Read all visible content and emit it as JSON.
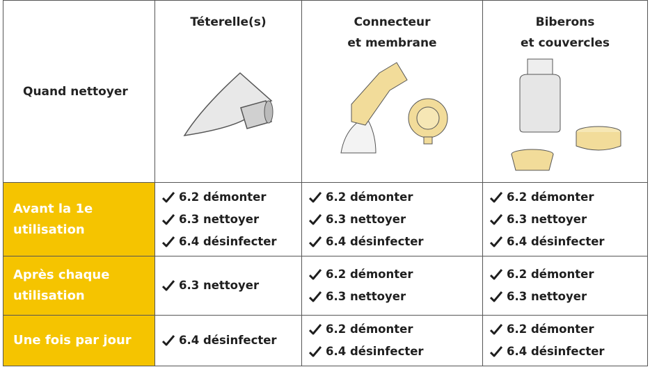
{
  "table": {
    "header": {
      "corner": "Quand nettoyer",
      "columns": [
        [
          "Téterelle(s)"
        ],
        [
          "Connecteur",
          "et membrane"
        ],
        [
          "Biberons",
          "et couvercles"
        ]
      ]
    },
    "rows": [
      {
        "label": [
          "Avant la 1e",
          "utilisation"
        ],
        "cells": [
          [
            "6.2 démonter",
            "6.3 nettoyer",
            "6.4 désinfecter"
          ],
          [
            "6.2 démonter",
            "6.3 nettoyer",
            "6.4 désinfecter"
          ],
          [
            "6.2 démonter",
            "6.3 nettoyer",
            "6.4 désinfecter"
          ]
        ]
      },
      {
        "label": [
          "Après chaque",
          "utilisation"
        ],
        "cells": [
          [
            "6.3 nettoyer"
          ],
          [
            "6.2 démonter",
            "6.3 nettoyer"
          ],
          [
            "6.2 démonter",
            "6.3 nettoyer"
          ]
        ]
      },
      {
        "label": [
          "Une fois par jour"
        ],
        "cells": [
          [
            "6.4 désinfecter"
          ],
          [
            "6.2 démonter",
            "6.4 désinfecter"
          ],
          [
            "6.2 démonter",
            "6.4 désinfecter"
          ]
        ]
      }
    ]
  }
}
